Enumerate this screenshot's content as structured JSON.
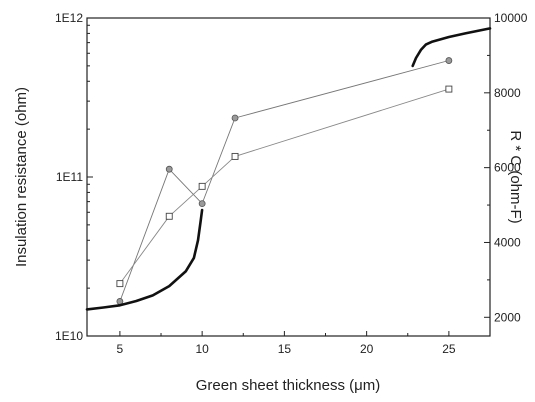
{
  "chart_data": {
    "type": "line",
    "title": "",
    "xlabel": "Green sheet thickness (μm)",
    "ylabel_left": "Insulation resistance (ohm)",
    "ylabel_right": "R * C (ohm-F)",
    "xlim": [
      3,
      27.5
    ],
    "ylim_left": [
      10000000000,
      1000000000000
    ],
    "ylim_left_scale": "log",
    "ylim_right": [
      1500,
      10000
    ],
    "x_ticks": [
      5,
      10,
      15,
      20,
      25
    ],
    "x_tick_labels": [
      "5",
      "10",
      "15",
      "20",
      "25"
    ],
    "y_left_ticks": [
      10000000000,
      100000000000,
      1000000000000
    ],
    "y_left_tick_labels": [
      "1E10",
      "1E11",
      "1E12"
    ],
    "y_right_ticks": [
      2000,
      4000,
      6000,
      8000,
      10000
    ],
    "y_right_tick_labels": [
      "2000",
      "4000",
      "6000",
      "8000",
      "10000"
    ],
    "grid": false,
    "legend": "none",
    "series": [
      {
        "axis": "left",
        "marker": "circle",
        "color": "#777777",
        "x": [
          5,
          8,
          10,
          12,
          25
        ],
        "y": [
          16500000000,
          112000000000,
          68000000000,
          235000000000,
          540000000000
        ]
      },
      {
        "axis": "right",
        "marker": "square",
        "color": "#888888",
        "x": [
          5,
          8,
          10,
          12,
          25
        ],
        "y": [
          2900,
          4700,
          5500,
          6300,
          8100
        ]
      },
      {
        "axis": "left",
        "marker": "none",
        "color": "#111111",
        "x": [
          3,
          4,
          5,
          6,
          7,
          8,
          9,
          9.5,
          9.75,
          9.9,
          10
        ],
        "y": [
          14700000000,
          15100000000,
          15600000000,
          16600000000,
          18000000000,
          20600000000,
          25500000000,
          31000000000,
          40000000000,
          52000000000,
          62000000000
        ]
      },
      {
        "axis": "left",
        "marker": "none",
        "color": "#111111",
        "x": [
          22.8,
          23,
          23.3,
          23.6,
          24,
          25,
          26,
          27.5
        ],
        "y": [
          500000000000,
          560000000000,
          630000000000,
          680000000000,
          710000000000,
          760000000000,
          800000000000,
          860000000000
        ]
      }
    ]
  }
}
